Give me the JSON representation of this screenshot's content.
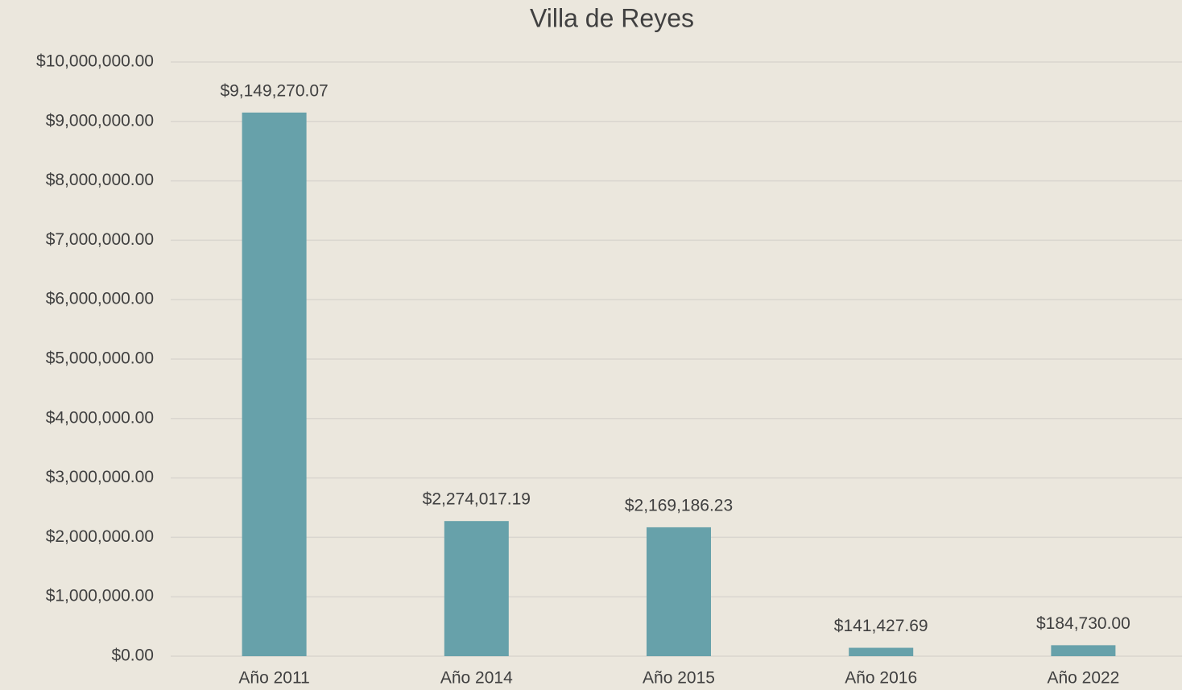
{
  "chart_data": {
    "type": "bar",
    "title": "Villa de Reyes",
    "categories": [
      "Año 2011",
      "Año 2014",
      "Año 2015",
      "Año 2016",
      "Año 2022"
    ],
    "values": [
      9149270.07,
      2274017.19,
      2169186.23,
      141427.69,
      184730
    ],
    "value_labels": [
      "$9,149,270.07",
      "$2,274,017.19",
      "$2,169,186.23",
      "$141,427.69",
      "$184,730.00"
    ],
    "color": "#67a1aa",
    "ylim": [
      0,
      10000000
    ],
    "yticks": [
      {
        "value": 0,
        "label": "$0.00"
      },
      {
        "value": 1000000,
        "label": "$1,000,000.00"
      },
      {
        "value": 2000000,
        "label": "$2,000,000.00"
      },
      {
        "value": 3000000,
        "label": "$3,000,000.00"
      },
      {
        "value": 4000000,
        "label": "$4,000,000.00"
      },
      {
        "value": 5000000,
        "label": "$5,000,000.00"
      },
      {
        "value": 6000000,
        "label": "$6,000,000.00"
      },
      {
        "value": 7000000,
        "label": "$7,000,000.00"
      },
      {
        "value": 8000000,
        "label": "$8,000,000.00"
      },
      {
        "value": 9000000,
        "label": "$9,000,000.00"
      },
      {
        "value": 10000000,
        "label": "$10,000,000.00"
      }
    ],
    "grid": true
  }
}
